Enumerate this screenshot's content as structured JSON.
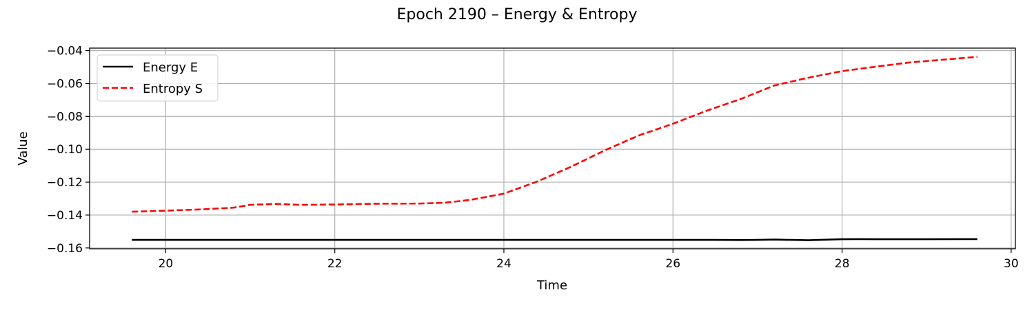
{
  "chart_data": {
    "type": "line",
    "title": "Epoch 2190 – Energy & Entropy",
    "xlabel": "Time",
    "ylabel": "Value",
    "xlim": [
      19.1,
      30.05
    ],
    "ylim": [
      -0.1605,
      -0.0385
    ],
    "xticks": [
      20,
      22,
      24,
      26,
      28,
      30
    ],
    "yticks": [
      -0.16,
      -0.14,
      -0.12,
      -0.1,
      -0.08,
      -0.06,
      -0.04
    ],
    "xtick_labels": [
      "20",
      "22",
      "24",
      "26",
      "28",
      "30"
    ],
    "ytick_labels": [
      "−0.16",
      "−0.14",
      "−0.12",
      "−0.10",
      "−0.08",
      "−0.06",
      "−0.04"
    ],
    "grid": true,
    "legend_position": "top-left",
    "series": [
      {
        "name": "Energy E",
        "color": "#000000",
        "style": "solid",
        "x": [
          19.6,
          20.0,
          20.5,
          21.0,
          21.5,
          22.0,
          22.5,
          23.0,
          23.5,
          24.0,
          24.5,
          25.0,
          25.5,
          26.0,
          26.5,
          26.8,
          27.0,
          27.2,
          27.4,
          27.6,
          27.8,
          28.0,
          28.2,
          28.5,
          29.0,
          29.6
        ],
        "y": [
          -0.1551,
          -0.1551,
          -0.1551,
          -0.1551,
          -0.1551,
          -0.1551,
          -0.1551,
          -0.1551,
          -0.1551,
          -0.1551,
          -0.1551,
          -0.1551,
          -0.1551,
          -0.1551,
          -0.1551,
          -0.1552,
          -0.1551,
          -0.1549,
          -0.1551,
          -0.1553,
          -0.155,
          -0.1547,
          -0.1546,
          -0.1547,
          -0.1547,
          -0.1546
        ]
      },
      {
        "name": "Entropy S",
        "color": "#ff0000",
        "style": "dashed",
        "x": [
          19.6,
          20.0,
          20.4,
          20.8,
          21.0,
          21.3,
          21.6,
          22.0,
          22.5,
          23.0,
          23.3,
          23.6,
          24.0,
          24.4,
          24.8,
          25.2,
          25.6,
          26.0,
          26.4,
          26.8,
          27.2,
          27.6,
          28.0,
          28.4,
          28.8,
          29.2,
          29.6
        ],
        "y": [
          -0.138,
          -0.1373,
          -0.1366,
          -0.1355,
          -0.1338,
          -0.1332,
          -0.1338,
          -0.1336,
          -0.1331,
          -0.133,
          -0.1325,
          -0.1308,
          -0.127,
          -0.1195,
          -0.1105,
          -0.1005,
          -0.0915,
          -0.0845,
          -0.0765,
          -0.0695,
          -0.0612,
          -0.0565,
          -0.0525,
          -0.0498,
          -0.0472,
          -0.0455,
          -0.0438
        ]
      }
    ]
  }
}
